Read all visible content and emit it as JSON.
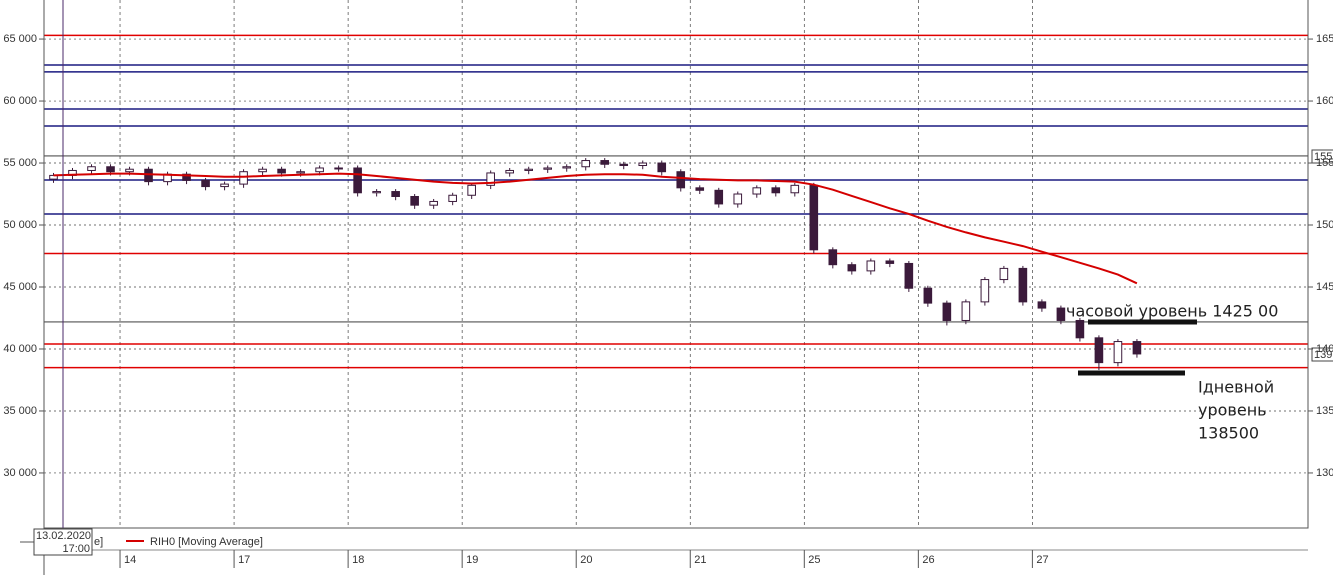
{
  "chart_data": {
    "type": "candlestick",
    "ylim": [
      25560,
      68150
    ],
    "yticks": [
      {
        "value": 65000,
        "label": "65 000"
      },
      {
        "value": 60000,
        "label": "60 000"
      },
      {
        "value": 55000,
        "label": "55 000"
      },
      {
        "value": 50000,
        "label": "50 000"
      },
      {
        "value": 45000,
        "label": "45 000"
      },
      {
        "value": 40000,
        "label": "40 000"
      },
      {
        "value": 35000,
        "label": "35 000"
      },
      {
        "value": 30000,
        "label": "30 000"
      }
    ],
    "y2lim": [
      125.56,
      168.15
    ],
    "y2ticks": [
      165,
      160,
      155,
      150,
      145,
      140,
      135,
      130
    ],
    "xlim": [
      0,
      66.5
    ],
    "xticks": [
      {
        "value": 4,
        "label": "14"
      },
      {
        "value": 10,
        "label": "17"
      },
      {
        "value": 16,
        "label": "18"
      },
      {
        "value": 22,
        "label": "19"
      },
      {
        "value": 28,
        "label": "20"
      },
      {
        "value": 34,
        "label": "21"
      },
      {
        "value": 40,
        "label": "25"
      },
      {
        "value": 46,
        "label": "26"
      },
      {
        "value": 52,
        "label": "27"
      }
    ],
    "grid": true,
    "candles": {
      "up_color": "#ffffff",
      "down_color": "#3b1a3b",
      "edge_color": "#3b1a3b",
      "open": [
        53700,
        54000,
        54400,
        54700,
        54300,
        54500,
        53500,
        54100,
        53600,
        53100,
        53300,
        54300,
        54500,
        54200,
        54300,
        54600,
        54600,
        52600,
        52700,
        52300,
        51600,
        51900,
        52400,
        53200,
        54200,
        54400,
        54500,
        54600,
        54700,
        55200,
        54900,
        54800,
        55000,
        54300,
        53000,
        52800,
        51700,
        52500,
        53000,
        52600,
        53200,
        48000,
        46800,
        46300,
        47100,
        46900,
        44900,
        43700,
        42300,
        43800,
        45600,
        46500,
        43800,
        43300,
        42300,
        40900,
        38900,
        40600
      ],
      "high": [
        54200,
        54600,
        54900,
        54900,
        54700,
        54700,
        54300,
        54300,
        53800,
        53500,
        54500,
        54700,
        54700,
        54500,
        54800,
        54800,
        54800,
        52900,
        52900,
        52500,
        52100,
        52600,
        53400,
        54400,
        54600,
        54700,
        54800,
        54900,
        55400,
        55400,
        55100,
        55200,
        55200,
        54500,
        53200,
        53000,
        52700,
        53200,
        53200,
        53400,
        53400,
        48200,
        47000,
        47300,
        47300,
        47100,
        45100,
        43900,
        44000,
        45800,
        46700,
        46700,
        44000,
        43500,
        42500,
        41100,
        40800,
        40800
      ],
      "low": [
        53400,
        53700,
        54100,
        54000,
        54000,
        53200,
        53200,
        53300,
        52800,
        52800,
        53000,
        54000,
        53900,
        53900,
        54000,
        54300,
        52300,
        52300,
        52000,
        51300,
        51300,
        51600,
        52100,
        52900,
        53900,
        54100,
        54200,
        54300,
        54400,
        54600,
        54500,
        54500,
        54000,
        52700,
        52500,
        51400,
        51400,
        52200,
        52300,
        52300,
        47700,
        46500,
        46000,
        46000,
        46600,
        44600,
        43400,
        41900,
        42000,
        43500,
        45300,
        43500,
        43000,
        42000,
        40600,
        38300,
        38600,
        39300
      ],
      "close": [
        54000,
        54400,
        54700,
        54300,
        54500,
        53500,
        54100,
        53600,
        53100,
        53300,
        54300,
        54500,
        54200,
        54300,
        54600,
        54600,
        52600,
        52700,
        52300,
        51600,
        51900,
        52400,
        53200,
        54200,
        54400,
        54500,
        54600,
        54700,
        55200,
        54900,
        54800,
        55000,
        54300,
        53000,
        52800,
        51700,
        52500,
        53000,
        52600,
        53200,
        48000,
        46800,
        46300,
        47100,
        46900,
        44900,
        43700,
        42300,
        43800,
        45600,
        46500,
        43800,
        43300,
        42300,
        40900,
        38900,
        40600,
        39600
      ]
    },
    "series": [
      {
        "name": "RIH0 [Moving Average]",
        "color": "#d40000",
        "values": [
          54000,
          54050,
          54100,
          54150,
          54150,
          54100,
          54050,
          54000,
          53950,
          53900,
          53900,
          53950,
          54000,
          54050,
          54100,
          54150,
          54100,
          53950,
          53800,
          53650,
          53500,
          53400,
          53350,
          53400,
          53500,
          53650,
          53800,
          53950,
          54050,
          54100,
          54100,
          54050,
          53900,
          53800,
          53700,
          53650,
          53600,
          53600,
          53550,
          53500,
          53250,
          52850,
          52350,
          51850,
          51350,
          50900,
          50350,
          49850,
          49400,
          49000,
          48650,
          48300,
          47850,
          47400,
          46950,
          46500,
          46000,
          45300
        ]
      }
    ],
    "legend_prefix": "e]",
    "levels": [
      {
        "value": 65300,
        "color": "#e00000",
        "width": 1.5
      },
      {
        "value": 62910,
        "color": "#1a1a80",
        "width": 1.5
      },
      {
        "value": 62350,
        "color": "#1a1a80",
        "width": 1.5
      },
      {
        "value": 59360,
        "color": "#1a1a80",
        "width": 1.5
      },
      {
        "value": 57990,
        "color": "#1a1a80",
        "width": 1.5
      },
      {
        "value": 55570,
        "color": "#222222",
        "width": 0.8
      },
      {
        "value": 53630,
        "color": "#1a1a80",
        "width": 1.5
      },
      {
        "value": 50890,
        "color": "#1a1a80",
        "width": 1.5
      },
      {
        "value": 47700,
        "color": "#e00000",
        "width": 1.5
      },
      {
        "value": 42180,
        "color": "#222222",
        "width": 0.8
      },
      {
        "value": 40400,
        "color": "#e00000",
        "width": 1.5
      },
      {
        "value": 38500,
        "color": "#e00000",
        "width": 1.5
      }
    ],
    "cursor": {
      "date": "13.02.2020",
      "time": "17:00"
    },
    "price_tags": [
      "155",
      "139"
    ],
    "annotations": [
      "часовой уровень 1425 00",
      "Ідневной",
      "уровень",
      "138500"
    ]
  }
}
